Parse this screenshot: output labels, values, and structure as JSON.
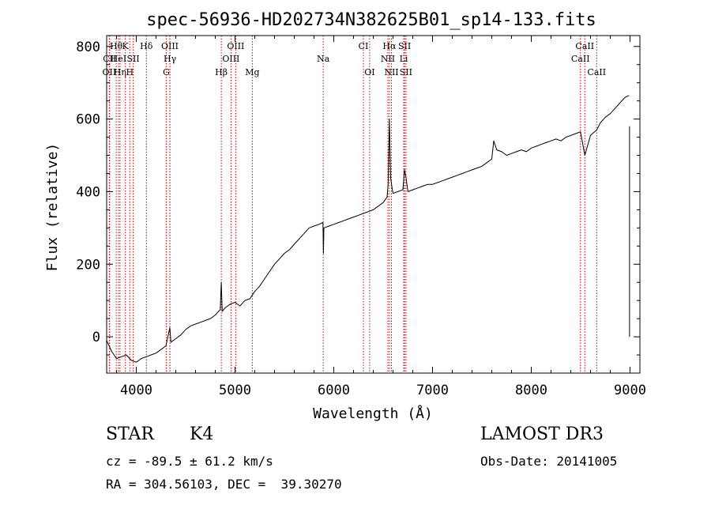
{
  "chart_data": {
    "type": "line",
    "title": "spec-56936-HD202734N382625B01_sp14-133.fits",
    "xlabel": "Wavelength (Å)",
    "ylabel": "Flux (relative)",
    "xlim": [
      3700,
      9100
    ],
    "ylim": [
      -100,
      830
    ],
    "xticks": [
      4000,
      5000,
      6000,
      7000,
      8000,
      9000
    ],
    "yticks": [
      0,
      200,
      400,
      600,
      800
    ],
    "series": [
      {
        "name": "spectrum",
        "x": [
          3700,
          3750,
          3800,
          3850,
          3900,
          3950,
          4000,
          4050,
          4100,
          4150,
          4200,
          4250,
          4300,
          4340,
          4350,
          4400,
          4450,
          4500,
          4550,
          4600,
          4650,
          4700,
          4750,
          4800,
          4850,
          4861,
          4870,
          4900,
          4950,
          5000,
          5050,
          5100,
          5150,
          5200,
          5250,
          5300,
          5350,
          5400,
          5450,
          5500,
          5550,
          5600,
          5650,
          5700,
          5750,
          5800,
          5850,
          5890,
          5895,
          5900,
          5950,
          6000,
          6050,
          6100,
          6150,
          6200,
          6250,
          6300,
          6350,
          6400,
          6450,
          6500,
          6540,
          6550,
          6563,
          6575,
          6590,
          6600,
          6650,
          6700,
          6716,
          6731,
          6750,
          6800,
          6850,
          6900,
          6950,
          7000,
          7050,
          7100,
          7150,
          7200,
          7250,
          7300,
          7350,
          7400,
          7450,
          7500,
          7550,
          7600,
          7620,
          7650,
          7700,
          7750,
          7800,
          7850,
          7900,
          7950,
          8000,
          8050,
          8100,
          8150,
          8200,
          8250,
          8300,
          8350,
          8400,
          8450,
          8498,
          8542,
          8600,
          8662,
          8700,
          8750,
          8800,
          8850,
          8900,
          8950,
          8990
        ],
        "values": [
          -10,
          -40,
          -60,
          -55,
          -50,
          -65,
          -70,
          -60,
          -55,
          -50,
          -45,
          -35,
          -25,
          25,
          -15,
          -5,
          5,
          20,
          30,
          35,
          40,
          45,
          50,
          60,
          75,
          150,
          70,
          80,
          90,
          95,
          85,
          100,
          105,
          125,
          140,
          160,
          180,
          200,
          215,
          230,
          240,
          255,
          270,
          285,
          300,
          305,
          310,
          315,
          230,
          300,
          305,
          310,
          315,
          320,
          325,
          330,
          335,
          340,
          345,
          350,
          360,
          370,
          385,
          420,
          600,
          440,
          410,
          395,
          400,
          405,
          460,
          440,
          400,
          405,
          410,
          415,
          420,
          420,
          425,
          430,
          435,
          440,
          445,
          450,
          455,
          460,
          465,
          470,
          480,
          490,
          540,
          515,
          510,
          500,
          505,
          510,
          515,
          510,
          520,
          525,
          530,
          535,
          540,
          545,
          540,
          550,
          555,
          560,
          565,
          500,
          555,
          570,
          590,
          605,
          615,
          630,
          645,
          660,
          665
        ]
      },
      {
        "name": "instrument edge",
        "x": [
          8995,
          8995,
          8995,
          8995
        ],
        "values": [
          580,
          160,
          120,
          0
        ]
      }
    ],
    "line_annotations": [
      {
        "label": "CII",
        "x": 3730,
        "row": 2
      },
      {
        "label": "OII",
        "x": 3727,
        "row": 3
      },
      {
        "label": "Hθ",
        "x": 3797,
        "row": 1
      },
      {
        "label": "HeI",
        "x": 3820,
        "row": 2
      },
      {
        "label": "Hη",
        "x": 3835,
        "row": 3
      },
      {
        "label": "K",
        "x": 3889,
        "row": 1
      },
      {
        "label": "H",
        "x": 3934,
        "row": 3
      },
      {
        "label": "SII",
        "x": 3969,
        "row": 2
      },
      {
        "label": "Hδ",
        "x": 4102,
        "row": 1
      },
      {
        "label": "OIII",
        "x": 4340,
        "row": 1
      },
      {
        "label": "Hγ",
        "x": 4341,
        "row": 2
      },
      {
        "label": "G",
        "x": 4304,
        "row": 3
      },
      {
        "label": "Hβ",
        "x": 4861,
        "row": 3
      },
      {
        "label": "OIII",
        "x": 4959,
        "row": 2
      },
      {
        "label": "OIII",
        "x": 5007,
        "row": 1
      },
      {
        "label": "Mg",
        "x": 5175,
        "row": 3
      },
      {
        "label": "Na",
        "x": 5893,
        "row": 2
      },
      {
        "label": "CI",
        "x": 6300,
        "row": 1
      },
      {
        "label": "OI",
        "x": 6363,
        "row": 3
      },
      {
        "label": "Hα",
        "x": 6563,
        "row": 1
      },
      {
        "label": "NII",
        "x": 6548,
        "row": 2
      },
      {
        "label": "NII",
        "x": 6584,
        "row": 3
      },
      {
        "label": "SII",
        "x": 6717,
        "row": 1
      },
      {
        "label": "Li",
        "x": 6708,
        "row": 2
      },
      {
        "label": "SII",
        "x": 6731,
        "row": 3
      },
      {
        "label": "CaII",
        "x": 8542,
        "row": 1
      },
      {
        "label": "CaII",
        "x": 8498,
        "row": 2
      },
      {
        "label": "CaII",
        "x": 8662,
        "row": 3
      }
    ],
    "annotation_color": "#cc0000"
  },
  "info": {
    "class": "STAR",
    "subclass": "K4",
    "survey": "LAMOST DR3",
    "cz": "cz = -89.5 ± 61.2 km/s",
    "obs_date": "Obs-Date: 20141005",
    "radec": "RA = 304.56103, DEC =  39.30270"
  }
}
